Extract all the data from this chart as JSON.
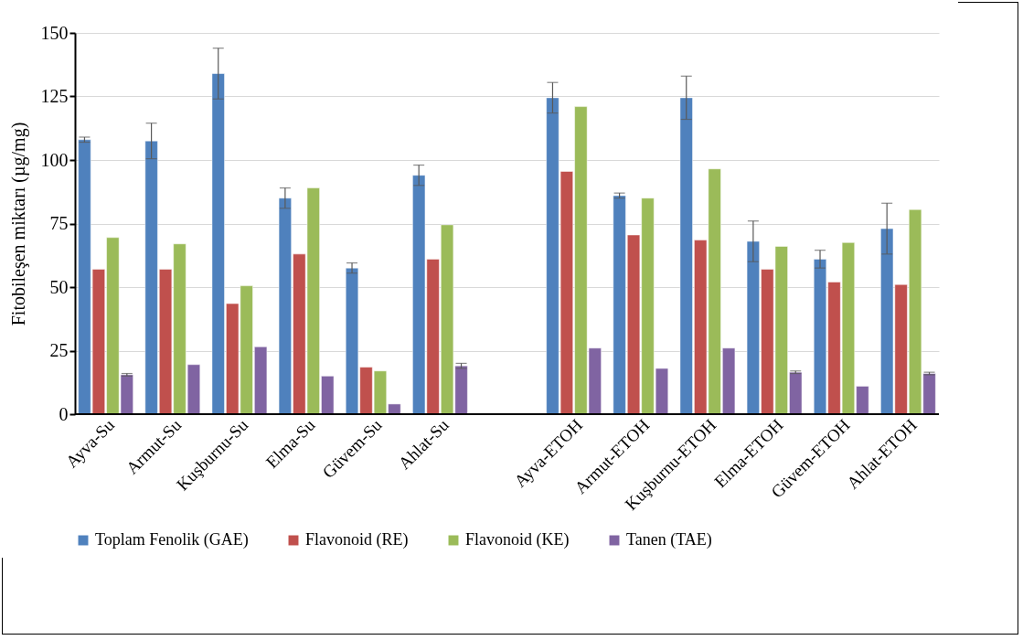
{
  "chart_data": {
    "type": "bar",
    "ylabel": "Fitobileşen miktarı (µg/mg)",
    "categories": [
      "Ayva-Su",
      "Armut-Su",
      "Kuşburnu-Su",
      "Elma-Su",
      "Güvem-Su",
      "Ahlat-Su",
      null,
      "Ayva-ETOH",
      "Armut-ETOH",
      "Kuşburnu-ETOH",
      "Elma-ETOH",
      "Güvem-ETOH",
      "Ahlat-ETOH"
    ],
    "series": [
      {
        "name": "Toplam Fenolik (GAE)",
        "color": "#4f81bd",
        "values": [
          108,
          107.5,
          134,
          85,
          57.5,
          94,
          null,
          124.5,
          86,
          124.5,
          68,
          61,
          73
        ],
        "errors": [
          1,
          7,
          10,
          4,
          2,
          4,
          null,
          6,
          1,
          8.5,
          8,
          3.5,
          10
        ]
      },
      {
        "name": "Flavonoid (RE)",
        "color": "#c0504d",
        "values": [
          57,
          57,
          43.5,
          63,
          18.5,
          61,
          null,
          95.5,
          70.5,
          68.5,
          57,
          52,
          51
        ]
      },
      {
        "name": "Flavonoid (KE)",
        "color": "#9bbb59",
        "values": [
          69.5,
          67,
          50.5,
          89,
          17,
          74.5,
          null,
          121,
          85,
          96.5,
          66,
          67.5,
          80.5
        ]
      },
      {
        "name": "Tanen (TAE)",
        "color": "#8064a2",
        "values": [
          15.5,
          19.5,
          26.5,
          15,
          4,
          19,
          null,
          26,
          18,
          26,
          16.5,
          11,
          16
        ],
        "errors": [
          0.5,
          null,
          null,
          null,
          null,
          1,
          null,
          null,
          null,
          null,
          0.5,
          null,
          0.5
        ]
      }
    ],
    "ylim": [
      0,
      150
    ],
    "yticks": [
      0,
      25,
      50,
      75,
      100,
      125,
      150
    ],
    "grid": "y",
    "legend": "bottom"
  }
}
